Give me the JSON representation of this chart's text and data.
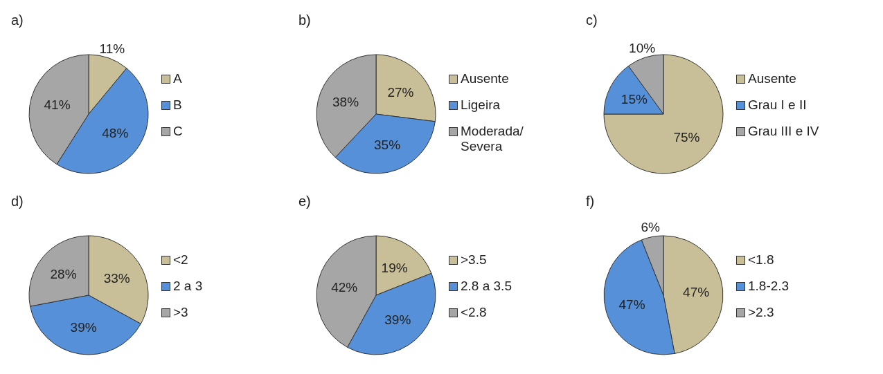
{
  "chart_data": [
    {
      "type": "pie",
      "title": "a)",
      "categories": [
        "A",
        "B",
        "C"
      ],
      "values": [
        11,
        48,
        41
      ],
      "colors": [
        "#c8bf98",
        "#5590d8",
        "#a6a6a6"
      ],
      "value_labels": [
        "11%",
        "48%",
        "41%"
      ],
      "legend": "right"
    },
    {
      "type": "pie",
      "title": "b)",
      "categories": [
        "Ausente",
        "Ligeira",
        "Moderada/ Severa"
      ],
      "values": [
        27,
        35,
        38
      ],
      "colors": [
        "#c8bf98",
        "#5590d8",
        "#a6a6a6"
      ],
      "value_labels": [
        "27%",
        "35%",
        "38%"
      ],
      "legend": "right"
    },
    {
      "type": "pie",
      "title": "c)",
      "categories": [
        "Ausente",
        "Grau I e II",
        "Grau III e IV"
      ],
      "values": [
        75,
        15,
        10
      ],
      "colors": [
        "#c8bf98",
        "#5590d8",
        "#a6a6a6"
      ],
      "value_labels": [
        "75%",
        "15%",
        "10%"
      ],
      "legend": "right"
    },
    {
      "type": "pie",
      "title": "d)",
      "categories": [
        "<2",
        "2 a 3",
        ">3"
      ],
      "values": [
        33,
        39,
        28
      ],
      "colors": [
        "#c8bf98",
        "#5590d8",
        "#a6a6a6"
      ],
      "value_labels": [
        "33%",
        "39%",
        "28%"
      ],
      "legend": "right"
    },
    {
      "type": "pie",
      "title": "e)",
      "categories": [
        ">3.5",
        "2.8 a 3.5",
        "<2.8"
      ],
      "values": [
        19,
        39,
        42
      ],
      "colors": [
        "#c8bf98",
        "#5590d8",
        "#a6a6a6"
      ],
      "value_labels": [
        "19%",
        "39%",
        "42%"
      ],
      "legend": "right"
    },
    {
      "type": "pie",
      "title": "f)",
      "categories": [
        "<1.8",
        "1.8-2.3",
        ">2.3"
      ],
      "values": [
        47,
        47,
        6
      ],
      "colors": [
        "#c8bf98",
        "#5590d8",
        "#a6a6a6"
      ],
      "value_labels": [
        "47%",
        "47%",
        "6%"
      ],
      "legend": "right"
    }
  ]
}
